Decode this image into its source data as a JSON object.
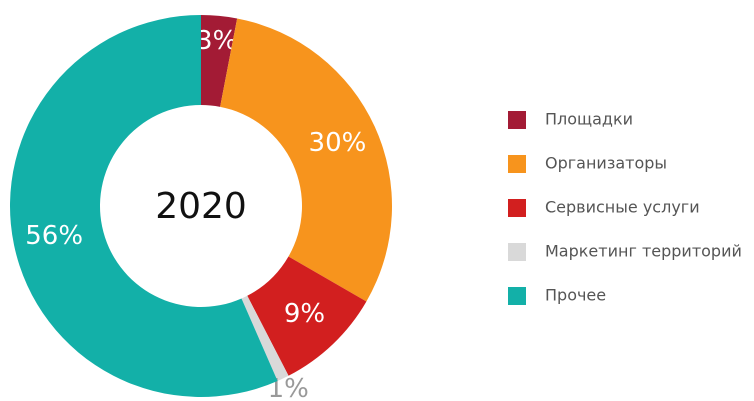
{
  "chart_data": {
    "type": "donut",
    "center_label": "2020",
    "categories": [
      "Площадки",
      "Организаторы",
      "Сервисные услуги",
      "Маркетинг территорий",
      "Прочее"
    ],
    "values": [
      3,
      30,
      9,
      1,
      56
    ],
    "value_labels": [
      "3%",
      "30%",
      "9%",
      "1%",
      "56%"
    ],
    "colors": [
      "#a31b35",
      "#f7941d",
      "#d21f1f",
      "#d9d9d9",
      "#13b0a8"
    ]
  }
}
